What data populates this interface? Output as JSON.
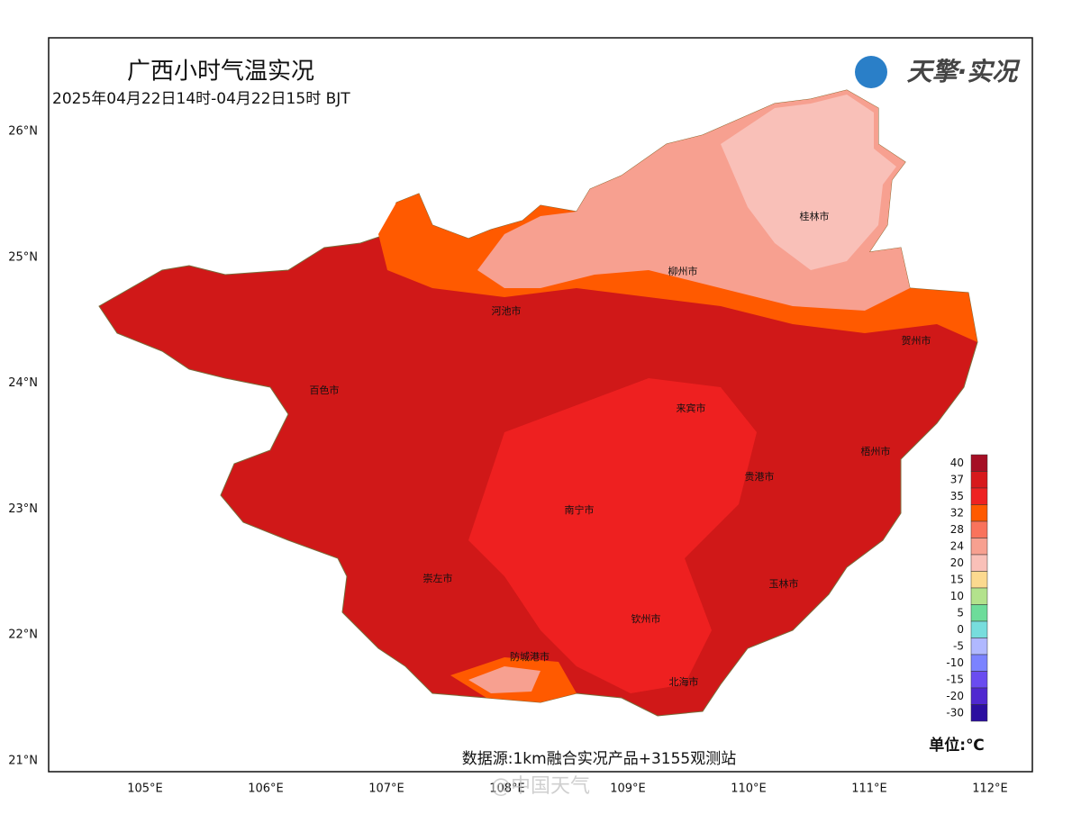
{
  "header": {
    "title": "广西小时气温实况",
    "subtitle": "2025年04月22日14时-04月22日15时 BJT",
    "logo": "天擎·实况"
  },
  "axes": {
    "lat_labels": [
      "26°N",
      "25°N",
      "24°N",
      "23°N",
      "22°N",
      "21°N"
    ],
    "lon_labels": [
      "105°E",
      "106°E",
      "107°E",
      "108°E",
      "109°E",
      "110°E",
      "111°E",
      "112°E"
    ]
  },
  "cities": [
    "桂林市",
    "柳州市",
    "河池市",
    "贺州市",
    "百色市",
    "来宾市",
    "梧州市",
    "贵港市",
    "南宁市",
    "崇左市",
    "玉林市",
    "钦州市",
    "防城港市",
    "北海市"
  ],
  "legend": {
    "levels": [
      40,
      37,
      35,
      32,
      28,
      24,
      20,
      15,
      10,
      5,
      0,
      -5,
      -10,
      -15,
      -20,
      -30
    ],
    "colors": [
      "#a50f25",
      "#d7191c",
      "#ee2222",
      "#ff5a00",
      "#f9735c",
      "#f7a090",
      "#f9c0b8",
      "#fcd98f",
      "#b3e28c",
      "#6ddc9a",
      "#77dddd",
      "#b0b8ff",
      "#7b83ff",
      "#6a4cf0",
      "#5028d0",
      "#2c0fa0"
    ],
    "unit": "单位:℃"
  },
  "footer": {
    "source": "数据源:1km融合实况产品+3155观测站",
    "watermark": "@中国天气"
  }
}
